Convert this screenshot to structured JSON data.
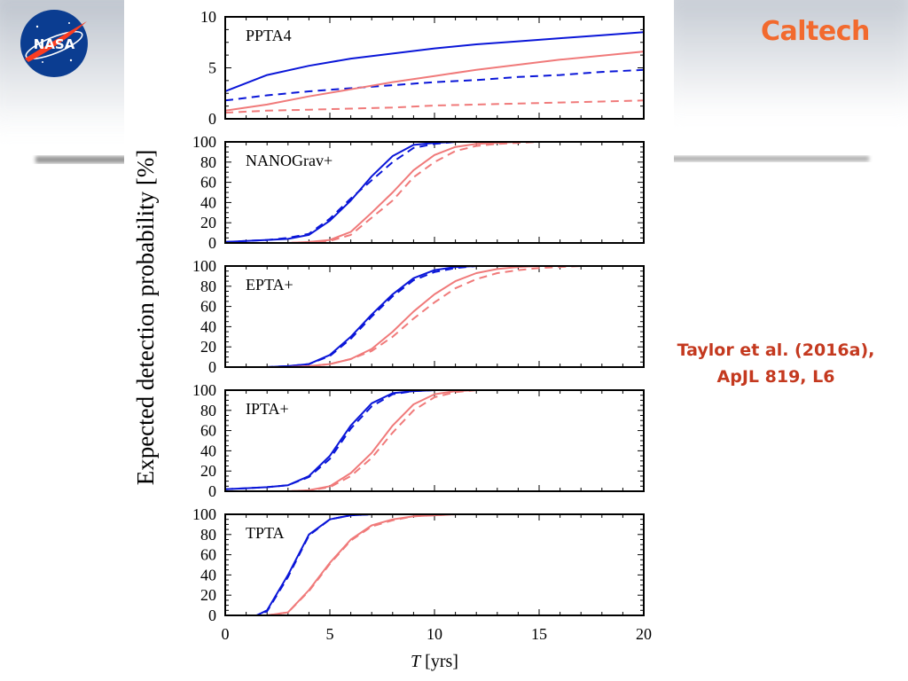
{
  "slide": {
    "logo_left": "NASA",
    "logo_right": "Caltech",
    "citation": {
      "line1": "Taylor et al. (2016a),",
      "line2": "ApJL 819, L6"
    }
  },
  "colors": {
    "blue": "#0a16d8",
    "red": "#f07a7a",
    "caltech": "#f26a2e",
    "citation": "#c4391f",
    "nasa_blue": "#0b3d91",
    "nasa_red": "#fc3d21"
  },
  "chart_data": {
    "type": "line",
    "ylabel": "Expected detection probability [%]",
    "xlabel_symbol": "T",
    "xlabel_unit": "[yrs]",
    "xlim": [
      0,
      20
    ],
    "xticks": [
      "0",
      "5",
      "10",
      "15",
      "20"
    ],
    "line_styles": [
      "solid",
      "dashed",
      "solid",
      "dashed"
    ],
    "panels": [
      {
        "label": "PPTA4",
        "ylim": [
          0,
          10
        ],
        "yticks": [
          "0",
          "5",
          "10"
        ],
        "x": [
          0,
          2,
          4,
          6,
          8,
          10,
          12,
          14,
          16,
          18,
          20
        ],
        "series": [
          {
            "color": "blue",
            "values": [
              2.7,
              4.3,
              5.2,
              5.9,
              6.4,
              6.9,
              7.3,
              7.6,
              7.9,
              8.2,
              8.5
            ]
          },
          {
            "color": "blue",
            "values": [
              1.8,
              2.3,
              2.7,
              3.0,
              3.3,
              3.6,
              3.8,
              4.1,
              4.3,
              4.6,
              4.8
            ]
          },
          {
            "color": "red",
            "values": [
              0.8,
              1.4,
              2.2,
              2.9,
              3.6,
              4.2,
              4.8,
              5.3,
              5.8,
              6.2,
              6.6
            ]
          },
          {
            "color": "red",
            "values": [
              0.6,
              0.8,
              0.9,
              1.0,
              1.1,
              1.3,
              1.4,
              1.5,
              1.6,
              1.7,
              1.8
            ]
          }
        ]
      },
      {
        "label": "NANOGrav+",
        "ylim": [
          0,
          100
        ],
        "yticks": [
          "0",
          "20",
          "40",
          "60",
          "80",
          "100"
        ],
        "x": [
          0,
          1,
          2,
          3,
          4,
          5,
          6,
          7,
          8,
          9,
          10,
          11,
          12,
          13,
          14,
          15,
          16,
          17,
          18,
          19,
          20
        ],
        "series": [
          {
            "color": "blue",
            "values": [
              1,
              2,
              3,
              4,
              8,
              22,
              42,
              66,
              86,
              97,
              99,
              100,
              100,
              100,
              100,
              100,
              100,
              100,
              100,
              100,
              100
            ]
          },
          {
            "color": "blue",
            "values": [
              1,
              2,
              3,
              5,
              9,
              24,
              44,
              62,
              80,
              94,
              98,
              100,
              100,
              100,
              100,
              100,
              100,
              100,
              100,
              100,
              100
            ]
          },
          {
            "color": "red",
            "values": [
              0,
              0,
              0,
              0,
              1,
              3,
              11,
              30,
              50,
              72,
              87,
              95,
              98,
              99,
              100,
              100,
              100,
              100,
              100,
              100,
              100
            ]
          },
          {
            "color": "red",
            "values": [
              0,
              0,
              0,
              0,
              1,
              2,
              8,
              25,
              42,
              65,
              80,
              91,
              96,
              98,
              99,
              100,
              100,
              100,
              100,
              100,
              100
            ]
          }
        ]
      },
      {
        "label": "EPTA+",
        "ylim": [
          0,
          100
        ],
        "yticks": [
          "0",
          "20",
          "40",
          "60",
          "80",
          "100"
        ],
        "x": [
          0,
          1,
          2,
          3,
          4,
          5,
          6,
          7,
          8,
          9,
          10,
          11,
          12,
          13,
          14,
          15,
          16,
          17,
          18,
          19,
          20
        ],
        "series": [
          {
            "color": "blue",
            "values": [
              0,
              0,
              0,
              1,
              3,
              12,
              30,
              52,
              72,
              88,
              96,
              99,
              100,
              100,
              100,
              100,
              100,
              100,
              100,
              100,
              100
            ]
          },
          {
            "color": "blue",
            "values": [
              0,
              0,
              0,
              1,
              3,
              11,
              28,
              50,
              70,
              86,
              94,
              98,
              100,
              100,
              100,
              100,
              100,
              100,
              100,
              100,
              100
            ]
          },
          {
            "color": "red",
            "values": [
              0,
              0,
              0,
              0,
              1,
              3,
              8,
              18,
              35,
              55,
              72,
              85,
              93,
              97,
              99,
              100,
              100,
              100,
              100,
              100,
              100
            ]
          },
          {
            "color": "red",
            "values": [
              0,
              0,
              0,
              0,
              1,
              3,
              8,
              16,
              30,
              48,
              64,
              78,
              87,
              93,
              96,
              98,
              99,
              100,
              100,
              100,
              100
            ]
          }
        ]
      },
      {
        "label": "IPTA+",
        "ylim": [
          0,
          100
        ],
        "yticks": [
          "0",
          "20",
          "40",
          "60",
          "80",
          "100"
        ],
        "x": [
          0,
          1,
          2,
          3,
          4,
          5,
          6,
          7,
          8,
          9,
          10,
          11,
          12,
          13,
          14,
          15,
          16,
          17,
          18,
          19,
          20
        ],
        "series": [
          {
            "color": "blue",
            "values": [
              2,
              3,
              4,
              6,
              15,
              35,
              65,
              87,
              97,
              99,
              100,
              100,
              100,
              100,
              100,
              100,
              100,
              100,
              100,
              100,
              100
            ]
          },
          {
            "color": "blue",
            "values": [
              2,
              3,
              4,
              6,
              14,
              32,
              62,
              84,
              96,
              99,
              100,
              100,
              100,
              100,
              100,
              100,
              100,
              100,
              100,
              100,
              100
            ]
          },
          {
            "color": "red",
            "values": [
              0,
              0,
              0,
              0,
              1,
              5,
              18,
              38,
              65,
              86,
              96,
              99,
              100,
              100,
              100,
              100,
              100,
              100,
              100,
              100,
              100
            ]
          },
          {
            "color": "red",
            "values": [
              0,
              0,
              0,
              0,
              1,
              4,
              15,
              33,
              58,
              80,
              93,
              98,
              100,
              100,
              100,
              100,
              100,
              100,
              100,
              100,
              100
            ]
          }
        ]
      },
      {
        "label": "TPTA",
        "ylim": [
          0,
          100
        ],
        "yticks": [
          "0",
          "20",
          "40",
          "60",
          "80",
          "100"
        ],
        "x": [
          0,
          1,
          1.5,
          2,
          3,
          4,
          5,
          6,
          7,
          8,
          9,
          10,
          11,
          12,
          13,
          14,
          15,
          16,
          17,
          18,
          19,
          20
        ],
        "series": [
          {
            "color": "blue",
            "values": [
              0,
              0,
              0,
              5,
              40,
              80,
              95,
              99,
              100,
              100,
              100,
              100,
              100,
              100,
              100,
              100,
              100,
              100,
              100,
              100,
              100,
              100
            ]
          },
          {
            "color": "blue",
            "values": [
              0,
              0,
              0,
              4,
              38,
              79,
              95,
              99,
              100,
              100,
              100,
              100,
              100,
              100,
              100,
              100,
              100,
              100,
              100,
              100,
              100,
              100
            ]
          },
          {
            "color": "red",
            "values": [
              0,
              0,
              0,
              0,
              3,
              25,
              52,
              75,
              89,
              95,
              98,
              99,
              100,
              100,
              100,
              100,
              100,
              100,
              100,
              100,
              100,
              100
            ]
          },
          {
            "color": "red",
            "values": [
              0,
              0,
              0,
              0,
              3,
              24,
              51,
              74,
              88,
              94,
              98,
              99,
              100,
              100,
              100,
              100,
              100,
              100,
              100,
              100,
              100,
              100
            ]
          }
        ]
      }
    ]
  }
}
